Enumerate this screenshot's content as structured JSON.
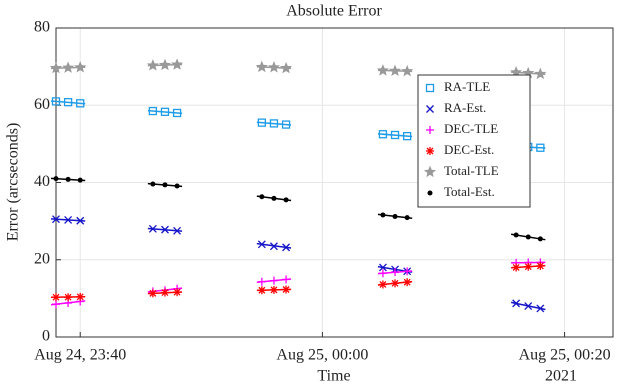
{
  "chart_data": {
    "type": "scatter",
    "title": "Absolute Error",
    "x_label": "Time",
    "y_label": "Error (arcseconds)",
    "x_year_label": "2021",
    "x": [
      "2021-08-24T23:38",
      "2021-08-24T23:39",
      "2021-08-24T23:40",
      "2021-08-24T23:46",
      "2021-08-24T23:47",
      "2021-08-24T23:48",
      "2021-08-24T23:55",
      "2021-08-24T23:56",
      "2021-08-24T23:57",
      "2021-08-25T00:05",
      "2021-08-25T00:06",
      "2021-08-25T00:07",
      "2021-08-25T00:16",
      "2021-08-25T00:17",
      "2021-08-25T00:18"
    ],
    "xlim": [
      "2021-08-24T23:38",
      "2021-08-25T00:24"
    ],
    "xticks": [
      {
        "value": "2021-08-24T23:40",
        "label": "Aug 24, 23:40"
      },
      {
        "value": "2021-08-25T00:00",
        "label": "Aug 25, 00:00"
      },
      {
        "value": "2021-08-25T00:20",
        "label": "Aug 25, 00:20"
      }
    ],
    "ylim": [
      0,
      80
    ],
    "yticks": [
      0,
      20,
      40,
      60,
      80
    ],
    "grid": true,
    "legend": "upper-right",
    "series": [
      {
        "name": "RA-TLE",
        "color": "#1e9ce8",
        "marker": "square",
        "values": [
          61,
          60.8,
          60.5,
          58.5,
          58.3,
          58,
          55.5,
          55.3,
          55,
          52.5,
          52.3,
          52,
          49.3,
          49.2,
          49
        ]
      },
      {
        "name": "RA-Est.",
        "color": "#1414c8",
        "marker": "x",
        "values": [
          30.5,
          30.3,
          30.1,
          28,
          27.8,
          27.5,
          24,
          23.5,
          23.2,
          18,
          17.5,
          17,
          8.7,
          8,
          7.4
        ]
      },
      {
        "name": "DEC-TLE",
        "color": "#ff00ff",
        "marker": "plus",
        "values": [
          8.5,
          8.8,
          9.2,
          11.8,
          12.1,
          12.5,
          14.3,
          14.6,
          14.9,
          16.5,
          16.8,
          17,
          19.2,
          19.3,
          19.3
        ]
      },
      {
        "name": "DEC-Est.",
        "color": "#ff0000",
        "marker": "asterisk",
        "values": [
          10.3,
          10.3,
          10.4,
          11.3,
          11.5,
          11.6,
          12.1,
          12.2,
          12.3,
          13.6,
          13.9,
          14.2,
          18,
          18.2,
          18.4
        ]
      },
      {
        "name": "Total-TLE",
        "color": "#999999",
        "marker": "star",
        "values": [
          69.6,
          69.7,
          69.8,
          70.3,
          70.4,
          70.5,
          69.9,
          69.8,
          69.6,
          69,
          68.9,
          68.8,
          68.5,
          68.3,
          68.1
        ]
      },
      {
        "name": "Total-Est.",
        "color": "#000000",
        "marker": "dot",
        "values": [
          41,
          40.8,
          40.6,
          39.6,
          39.4,
          39.1,
          36.3,
          35.9,
          35.5,
          31.6,
          31.2,
          30.9,
          26.4,
          25.9,
          25.4
        ]
      }
    ]
  }
}
